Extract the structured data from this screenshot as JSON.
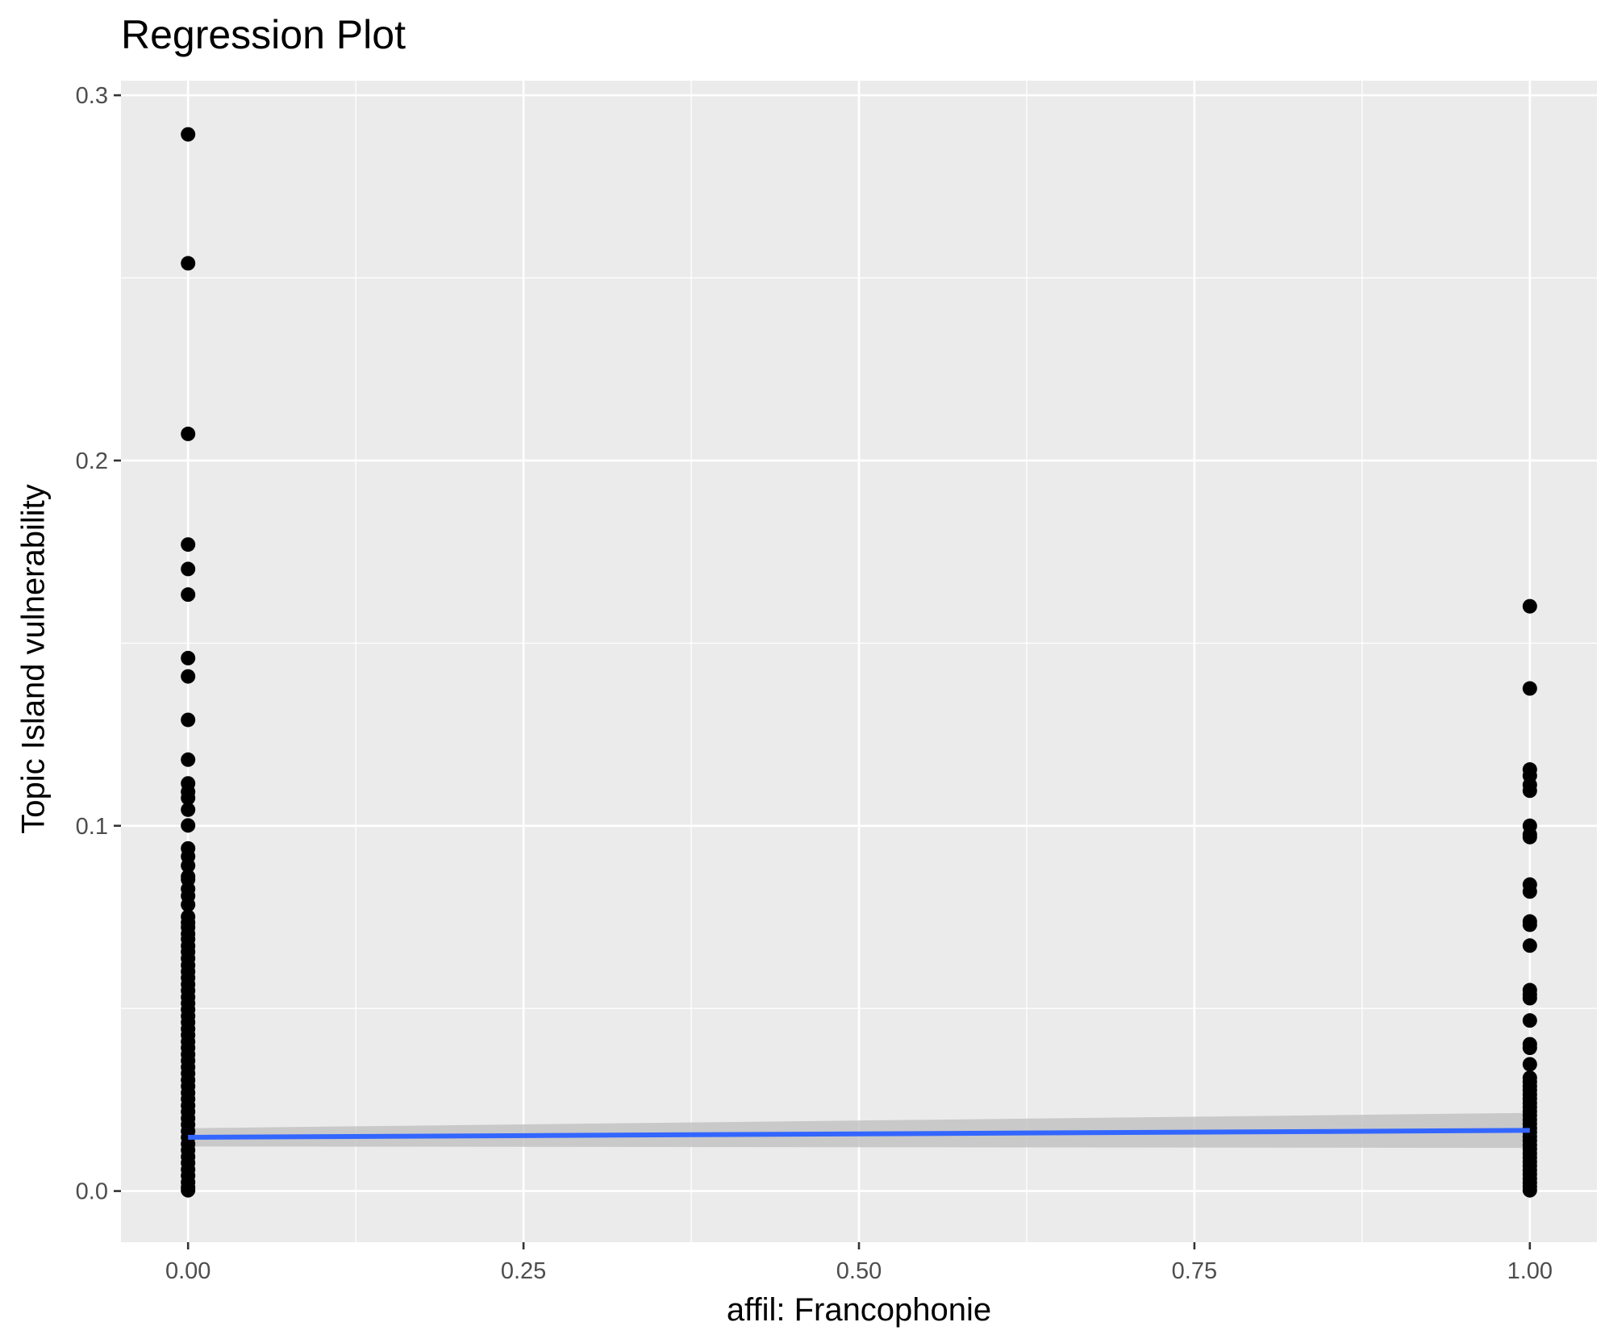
{
  "chart_data": {
    "type": "scatter",
    "title": "Regression Plot",
    "xlabel": "affil: Francophonie",
    "ylabel": "Topic Island vulnerability",
    "xlim": [
      -0.05,
      1.05
    ],
    "ylim": [
      -0.014,
      0.304
    ],
    "x_ticks": [
      0,
      0.25,
      0.5,
      0.75,
      1
    ],
    "x_tick_labels": [
      "0.00",
      "0.25",
      "0.50",
      "0.75",
      "1.00"
    ],
    "y_ticks": [
      0,
      0.1,
      0.2,
      0.3
    ],
    "y_tick_labels": [
      "0.0",
      "0.1",
      "0.2",
      "0.3"
    ],
    "grid": true,
    "background": "#ebebeb",
    "point_color": "#000000",
    "series": [
      {
        "x": 0,
        "y": [
          0.2893,
          0.254,
          0.2073,
          0.177,
          0.1703,
          0.1633,
          0.1459,
          0.1409,
          0.129,
          0.1181,
          0.1116,
          0.1093,
          0.1076,
          0.1044,
          0.1001,
          0.0938,
          0.0916,
          0.0891,
          0.0861,
          0.0853,
          0.0827,
          0.0808,
          0.0784,
          0.0751,
          0.0735,
          0.0722,
          0.0704,
          0.069,
          0.0671,
          0.0655,
          0.0637,
          0.0618,
          0.0601,
          0.0584,
          0.0566,
          0.0549,
          0.0531,
          0.0514,
          0.0497,
          0.0479,
          0.0462,
          0.0444,
          0.0427,
          0.0409,
          0.0392,
          0.0374,
          0.0357,
          0.0339,
          0.0322,
          0.0304,
          0.0287,
          0.0269,
          0.0252,
          0.0234,
          0.0217,
          0.0199,
          0.0182,
          0.0164,
          0.0147,
          0.0129,
          0.0112,
          0.0094,
          0.0077,
          0.0059,
          0.0042,
          0.0024,
          0.001,
          0.0002
        ]
      },
      {
        "x": 1,
        "y": [
          0.1601,
          0.1376,
          0.1154,
          0.1137,
          0.1112,
          0.1096,
          0.1,
          0.0976,
          0.0969,
          0.0839,
          0.082,
          0.0738,
          0.0729,
          0.0672,
          0.055,
          0.0538,
          0.0528,
          0.0467,
          0.0402,
          0.0392,
          0.0347,
          0.031,
          0.0299,
          0.0287,
          0.0276,
          0.0264,
          0.0253,
          0.0241,
          0.023,
          0.0218,
          0.0207,
          0.0195,
          0.0184,
          0.0172,
          0.0161,
          0.0149,
          0.0138,
          0.0126,
          0.0115,
          0.0103,
          0.0092,
          0.008,
          0.0069,
          0.0057,
          0.0046,
          0.0034,
          0.0023,
          0.0012,
          0.0002
        ]
      }
    ],
    "regression": {
      "x": [
        0,
        1
      ],
      "y": [
        0.0147,
        0.0166
      ],
      "ci_lower": [
        0.0122,
        0.0118
      ],
      "ci_upper": [
        0.0172,
        0.0214
      ],
      "line_color": "#3366ff",
      "band_color": "#bebebe"
    }
  }
}
